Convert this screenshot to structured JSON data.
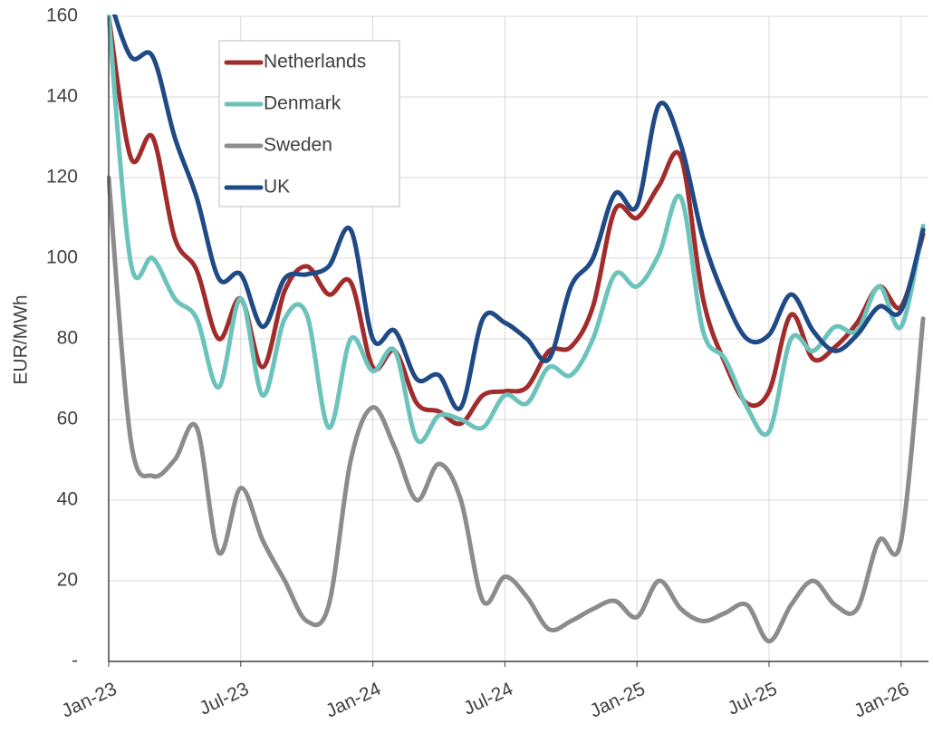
{
  "chart_data": {
    "type": "line",
    "y_label": "EUR/MWh",
    "categories": [
      "Jan-23",
      null,
      null,
      null,
      null,
      null,
      "Jul-23",
      null,
      null,
      null,
      null,
      null,
      "Jan-24",
      null,
      null,
      null,
      null,
      null,
      "Jul-24",
      null,
      null,
      null,
      null,
      null,
      "Jan-25",
      null,
      null,
      null,
      null,
      null,
      "Jul-25",
      null,
      null,
      null,
      null,
      null,
      "Jan-26",
      null
    ],
    "series": [
      {
        "name": "Netherlands",
        "color": "#a22b2b",
        "values": [
          160,
          125,
          130,
          105,
          97,
          80,
          90,
          73,
          92,
          98,
          91,
          94,
          73,
          77,
          64,
          62,
          59,
          66,
          67,
          68,
          77,
          78,
          88,
          112,
          110,
          118,
          125,
          90,
          74,
          64,
          67,
          86,
          75,
          78,
          84,
          93,
          88,
          106
        ]
      },
      {
        "name": "Denmark",
        "color": "#6cc3bb",
        "values": [
          160,
          99,
          100,
          90,
          85,
          68,
          90,
          66,
          85,
          86,
          58,
          80,
          72,
          77,
          55,
          61,
          60,
          58,
          66,
          64,
          73,
          71,
          80,
          96,
          93,
          101,
          115,
          82,
          75,
          63,
          57,
          80,
          77,
          83,
          82,
          93,
          83,
          108
        ]
      },
      {
        "name": "Sweden",
        "color": "#8c8c8c",
        "values": [
          120,
          55,
          46,
          50,
          58,
          27,
          43,
          30,
          20,
          10,
          14,
          50,
          63,
          53,
          40,
          49,
          40,
          15,
          21,
          16,
          8,
          10,
          13,
          15,
          11,
          20,
          13,
          10,
          12,
          14,
          5,
          14,
          20,
          14,
          13,
          30,
          30,
          85
        ]
      },
      {
        "name": "UK",
        "color": "#1f4a85",
        "values": [
          165,
          150,
          150,
          130,
          115,
          95,
          96,
          83,
          95,
          96,
          98,
          107,
          80,
          82,
          70,
          71,
          63,
          85,
          84,
          80,
          75,
          93,
          100,
          116,
          113,
          138,
          128,
          105,
          90,
          80,
          81,
          91,
          82,
          77,
          81,
          88,
          87,
          107
        ]
      }
    ],
    "ylim": [
      0,
      160
    ],
    "yticks": [
      {
        "value": 0,
        "label": "-"
      },
      20,
      40,
      60,
      80,
      100,
      120,
      140,
      160
    ],
    "grid": true,
    "legend": "upper-left"
  }
}
